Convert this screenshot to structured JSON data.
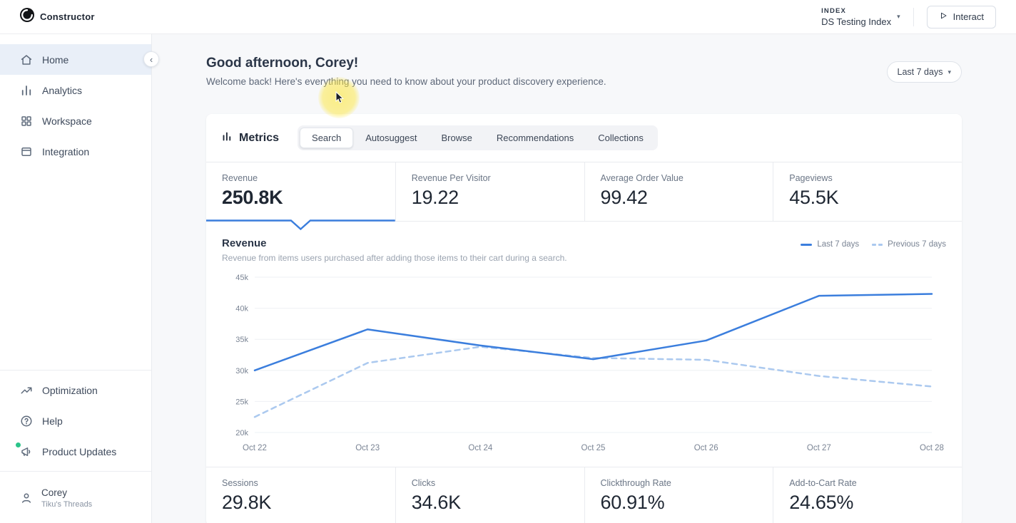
{
  "topbar": {
    "brand": "Constructor",
    "index_label": "INDEX",
    "index_value": "DS Testing Index",
    "interact_label": "Interact"
  },
  "sidebar": {
    "items": [
      {
        "label": "Home",
        "icon": "home-icon",
        "active": true
      },
      {
        "label": "Analytics",
        "icon": "analytics-icon",
        "active": false
      },
      {
        "label": "Workspace",
        "icon": "workspace-icon",
        "active": false
      },
      {
        "label": "Integration",
        "icon": "integration-icon",
        "active": false
      }
    ],
    "bottom_items": [
      {
        "label": "Optimization",
        "icon": "trending-up-icon"
      },
      {
        "label": "Help",
        "icon": "question-circle-icon"
      },
      {
        "label": "Product Updates",
        "icon": "megaphone-icon",
        "badge": "unread-green-dot"
      }
    ],
    "user": {
      "name": "Corey",
      "org": "Tiku's Threads"
    }
  },
  "main": {
    "greeting": "Good afternoon, Corey!",
    "subtitle": "Welcome back! Here's everything you need to know about your product discovery experience.",
    "date_range": "Last 7 days"
  },
  "metrics": {
    "title": "Metrics",
    "tabs": [
      "Search",
      "Autosuggest",
      "Browse",
      "Recommendations",
      "Collections"
    ],
    "active_tab": "Search",
    "tiles": [
      {
        "label": "Revenue",
        "value": "250.8K",
        "selected": true
      },
      {
        "label": "Revenue Per Visitor",
        "value": "19.22",
        "selected": false
      },
      {
        "label": "Average Order Value",
        "value": "99.42",
        "selected": false
      },
      {
        "label": "Pageviews",
        "value": "45.5K",
        "selected": false
      }
    ],
    "bottom_tiles": [
      {
        "label": "Sessions",
        "value": "29.8K"
      },
      {
        "label": "Clicks",
        "value": "34.6K"
      },
      {
        "label": "Clickthrough Rate",
        "value": "60.91%"
      },
      {
        "label": "Add-to-Cart Rate",
        "value": "24.65%"
      }
    ]
  },
  "chart_data": {
    "type": "line",
    "title": "Revenue",
    "subtitle": "Revenue from items users purchased after adding those items to their cart during a search.",
    "x": [
      "Oct 22",
      "Oct 23",
      "Oct 24",
      "Oct 25",
      "Oct 26",
      "Oct 27",
      "Oct 28"
    ],
    "series": [
      {
        "name": "Last 7 days",
        "style": "solid",
        "color": "#3b7edd",
        "values": [
          30000,
          36600,
          34000,
          31800,
          34800,
          42000,
          42300
        ]
      },
      {
        "name": "Previous 7 days",
        "style": "dashed",
        "color": "#abc9ef",
        "values": [
          22500,
          31200,
          33800,
          32000,
          31700,
          29100,
          27400
        ]
      }
    ],
    "ylim": [
      20000,
      45000
    ],
    "yticks": [
      "20k",
      "25k",
      "30k",
      "35k",
      "40k",
      "45k"
    ],
    "grid": true,
    "legend_position": "top-right"
  },
  "icons": {
    "chevron_down": "▾",
    "chevron_left": "‹"
  },
  "colors": {
    "accent": "#3b7edd",
    "accent_light": "#abc9ef",
    "sidebar_active_bg": "#e9eff8",
    "main_bg": "#f7f8fa",
    "green_badge": "#2bc48a"
  }
}
